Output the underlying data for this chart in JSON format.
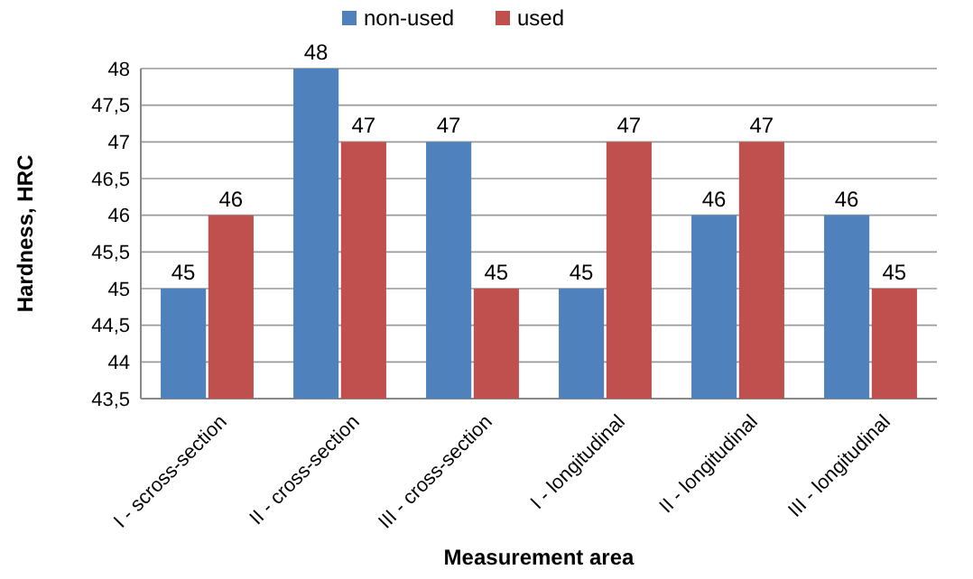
{
  "chart_data": {
    "type": "bar",
    "xlabel": "Measurement area",
    "ylabel": "Hardness, HRC",
    "categories": [
      "I - scross-section",
      "II - cross-section",
      "III - cross-section",
      "I - longitudinal",
      "II - longitudinal",
      "III - longitudinal"
    ],
    "series": [
      {
        "name": "non-used",
        "color": "#4f81bd",
        "values": [
          45,
          48,
          47,
          45,
          46,
          46
        ]
      },
      {
        "name": "used",
        "color": "#c0504d",
        "values": [
          46,
          47,
          45,
          47,
          47,
          45
        ]
      }
    ],
    "ylim": [
      43.5,
      48
    ],
    "yticks": [
      {
        "value": 43.5,
        "label": "43,5"
      },
      44,
      {
        "value": 44.5,
        "label": "44,5"
      },
      45,
      {
        "value": 45.5,
        "label": "45,5"
      },
      46,
      {
        "value": 46.5,
        "label": "46,5"
      },
      47,
      {
        "value": 47.5,
        "label": "47,5"
      },
      48
    ],
    "grid": true,
    "legend": "top",
    "data_labels": true
  }
}
